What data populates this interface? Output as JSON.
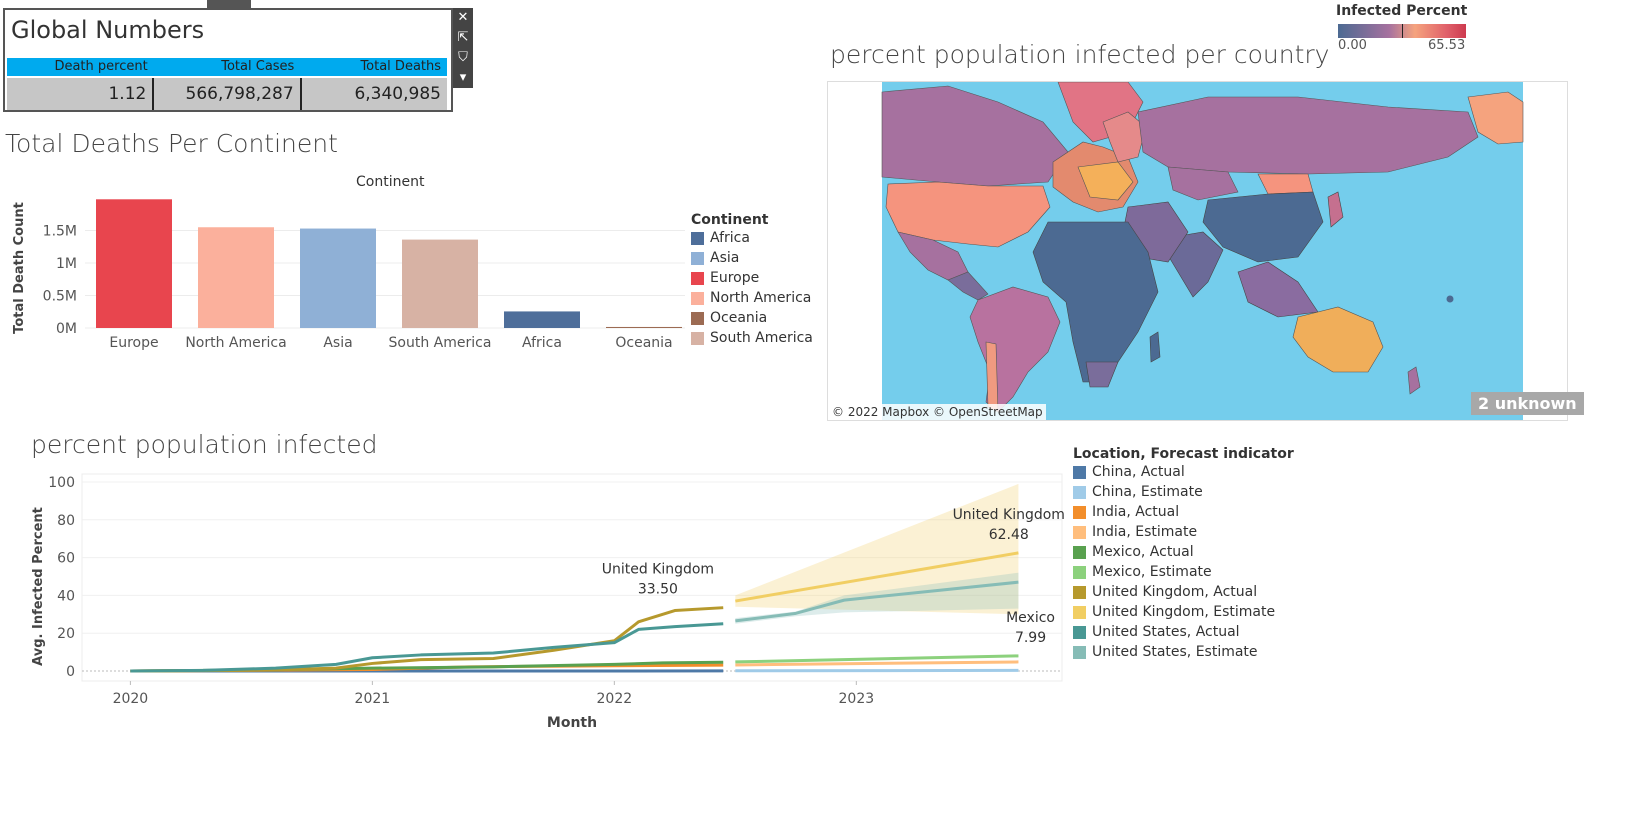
{
  "global_numbers": {
    "title": "Global Numbers",
    "columns": [
      "Death percent",
      "Total Cases",
      "Total Deaths"
    ],
    "values": [
      "1.12",
      "566,798,287",
      "6,340,985"
    ],
    "tools": [
      "close-icon",
      "popout-icon",
      "filter-icon",
      "dropdown-icon"
    ]
  },
  "deaths_chart": {
    "title": "Total Deaths Per Continent",
    "header": "Continent",
    "legend_title": "Continent",
    "legend": [
      {
        "label": "Africa",
        "color": "#4e6e9a"
      },
      {
        "label": "Asia",
        "color": "#8fb0d6"
      },
      {
        "label": "Europe",
        "color": "#e8454e"
      },
      {
        "label": "North America",
        "color": "#fbb09c"
      },
      {
        "label": "Oceania",
        "color": "#9c6b53"
      },
      {
        "label": "South America",
        "color": "#d7b2a4"
      }
    ]
  },
  "map": {
    "title": "percent population infected per country",
    "legend_title": "Infected Percent",
    "legend_min": "0.00",
    "legend_max": "65.53",
    "credit": "© 2022 Mapbox © OpenStreetMap",
    "unknown": "2 unknown",
    "colors": {
      "water": "#74cdec",
      "low": "#4c6a92",
      "mid": "#a6719f",
      "high": "#f5a37e",
      "peak": "#cd3a4f"
    }
  },
  "infected_chart": {
    "title": "percent population infected",
    "legend_title": "Location, Forecast indicator",
    "legend": [
      {
        "label": "China, Actual",
        "color": "#4e79a7"
      },
      {
        "label": "China, Estimate",
        "color": "#a0cbe8"
      },
      {
        "label": "India, Actual",
        "color": "#f28e2b"
      },
      {
        "label": "India, Estimate",
        "color": "#ffbe7d"
      },
      {
        "label": "Mexico, Actual",
        "color": "#59a14f"
      },
      {
        "label": "Mexico, Estimate",
        "color": "#8cd17d"
      },
      {
        "label": "United Kingdom, Actual",
        "color": "#b6992d"
      },
      {
        "label": "United Kingdom, Estimate",
        "color": "#f1ce63"
      },
      {
        "label": "United States, Actual",
        "color": "#499894"
      },
      {
        "label": "United States, Estimate",
        "color": "#86bcb6"
      }
    ],
    "annotations": [
      {
        "name": "United Kingdom",
        "value": "33.50"
      },
      {
        "name": "United Kingdom",
        "value": "62.48"
      },
      {
        "name": "Mexico",
        "value": "7.99"
      }
    ]
  },
  "chart_data": [
    {
      "type": "bar",
      "title": "Total Deaths Per Continent",
      "xlabel": "Continent",
      "ylabel": "Total Death Count",
      "categories": [
        "Europe",
        "North America",
        "Asia",
        "South America",
        "Africa",
        "Oceania"
      ],
      "values": [
        1980000,
        1550000,
        1530000,
        1360000,
        255000,
        16000
      ],
      "colors": [
        "#e8454e",
        "#fbb09c",
        "#8fb0d6",
        "#d7b2a4",
        "#4e6e9a",
        "#9c6b53"
      ],
      "y_ticks": [
        {
          "v": 0,
          "label": "0M"
        },
        {
          "v": 500000,
          "label": "0.5M"
        },
        {
          "v": 1000000,
          "label": "1M"
        },
        {
          "v": 1500000,
          "label": "1.5M"
        }
      ],
      "ylim": [
        0,
        2000000
      ]
    },
    {
      "type": "line",
      "title": "percent population infected",
      "xlabel": "Month",
      "ylabel": "Avg. Infected Percent",
      "x_ticks": [
        "2020",
        "2021",
        "2022",
        "2023"
      ],
      "y_ticks": [
        0,
        20,
        40,
        60,
        80,
        100
      ],
      "ylim": [
        0,
        100
      ],
      "xlim": [
        2019.8,
        2023.85
      ],
      "series": [
        {
          "name": "China, Actual",
          "color": "#4e79a7",
          "x": [
            2020.0,
            2021.0,
            2022.0,
            2022.45
          ],
          "y": [
            0,
            0.01,
            0.02,
            0.07
          ]
        },
        {
          "name": "China, Estimate",
          "color": "#a0cbe8",
          "x": [
            2022.5,
            2023.67
          ],
          "y": [
            0.1,
            0.3
          ]
        },
        {
          "name": "India, Actual",
          "color": "#f28e2b",
          "x": [
            2020.0,
            2020.5,
            2021.0,
            2021.4,
            2022.0,
            2022.45
          ],
          "y": [
            0,
            0.4,
            0.8,
            2.2,
            2.8,
            3.1
          ]
        },
        {
          "name": "India, Estimate",
          "color": "#ffbe7d",
          "x": [
            2022.5,
            2023.67
          ],
          "y": [
            3.2,
            4.8
          ]
        },
        {
          "name": "Mexico, Actual",
          "color": "#59a14f",
          "x": [
            2020.0,
            2020.5,
            2021.0,
            2021.5,
            2022.0,
            2022.2,
            2022.45
          ],
          "y": [
            0,
            0.5,
            1.5,
            2.2,
            3.5,
            4.3,
            4.6
          ]
        },
        {
          "name": "Mexico, Estimate",
          "color": "#8cd17d",
          "x": [
            2022.5,
            2023.67
          ],
          "y": [
            4.8,
            7.99
          ]
        },
        {
          "name": "United Kingdom, Actual",
          "color": "#b6992d",
          "x": [
            2020.0,
            2020.3,
            2020.6,
            2020.85,
            2021.0,
            2021.2,
            2021.5,
            2021.75,
            2022.0,
            2022.1,
            2022.25,
            2022.45
          ],
          "y": [
            0,
            0.2,
            0.6,
            1.5,
            4.0,
            6.0,
            6.6,
            11.0,
            16.0,
            26.0,
            32.0,
            33.5
          ]
        },
        {
          "name": "United Kingdom, Estimate",
          "color": "#f1ce63",
          "x": [
            2022.5,
            2023.67
          ],
          "y": [
            37.0,
            62.48
          ],
          "band_low": [
            34.0,
            30.0
          ],
          "band_high": [
            40.0,
            99.0
          ]
        },
        {
          "name": "United States, Actual",
          "color": "#499894",
          "x": [
            2020.0,
            2020.3,
            2020.6,
            2020.85,
            2021.0,
            2021.2,
            2021.5,
            2021.75,
            2022.0,
            2022.1,
            2022.25,
            2022.45
          ],
          "y": [
            0,
            0.3,
            1.5,
            3.5,
            7.0,
            8.5,
            9.5,
            12.5,
            15.0,
            22.0,
            23.5,
            25.0
          ]
        },
        {
          "name": "United States, Estimate",
          "color": "#86bcb6",
          "x": [
            2022.5,
            2022.75,
            2022.95,
            2023.67
          ],
          "y": [
            26.5,
            30.5,
            37.5,
            47.0
          ],
          "band_low": [
            25.0,
            29.0,
            31.0,
            33.0
          ],
          "band_high": [
            28.0,
            31.5,
            40.0,
            52.0
          ]
        }
      ]
    }
  ]
}
